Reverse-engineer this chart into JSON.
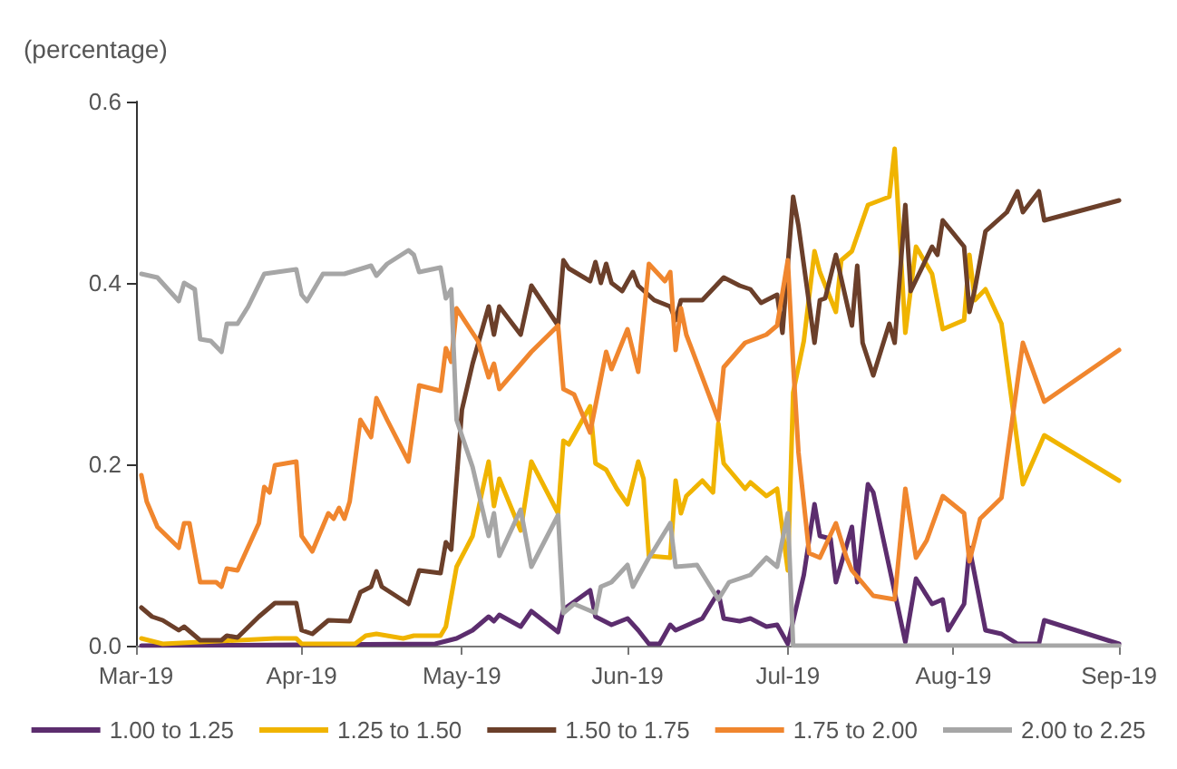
{
  "chart_data": {
    "type": "line",
    "ylabel": "(percentage)",
    "xlim": [
      "2019-03-01",
      "2019-09-01"
    ],
    "xticks": [
      {
        "value": "2019-03-01",
        "label": "Mar-19"
      },
      {
        "value": "2019-04-01",
        "label": "Apr-19"
      },
      {
        "value": "2019-05-01",
        "label": "May-19"
      },
      {
        "value": "2019-06-01",
        "label": "Jun-19"
      },
      {
        "value": "2019-07-01",
        "label": "Jul-19"
      },
      {
        "value": "2019-08-01",
        "label": "Aug-19"
      },
      {
        "value": "2019-09-01",
        "label": "Sep-19"
      }
    ],
    "ylim": [
      0,
      0.6
    ],
    "yticks": [
      {
        "value": 0,
        "label": "0.0"
      },
      {
        "value": 0.2,
        "label": "0.2"
      },
      {
        "value": 0.4,
        "label": "0.4"
      },
      {
        "value": 0.6,
        "label": "0.6"
      }
    ],
    "grid": false,
    "legend": "bottom",
    "marker": "none",
    "line_style": "solid",
    "series": [
      {
        "name": "1.00 to 1.25",
        "color": "#5c2d6e",
        "x": [
          "2019-03-02",
          "2019-04-26",
          "2019-04-30",
          "2019-05-03",
          "2019-05-06",
          "2019-05-07",
          "2019-05-08",
          "2019-05-12",
          "2019-05-14",
          "2019-05-19",
          "2019-05-20",
          "2019-05-25",
          "2019-05-26",
          "2019-05-29",
          "2019-06-01",
          "2019-06-03",
          "2019-06-05",
          "2019-06-07",
          "2019-06-09",
          "2019-06-10",
          "2019-06-15",
          "2019-06-18",
          "2019-06-19",
          "2019-06-22",
          "2019-06-24",
          "2019-06-27",
          "2019-06-29",
          "2019-07-01",
          "2019-07-04",
          "2019-07-06",
          "2019-07-07",
          "2019-07-09",
          "2019-07-10",
          "2019-07-13",
          "2019-07-14",
          "2019-07-16",
          "2019-07-17",
          "2019-07-23",
          "2019-07-25",
          "2019-07-28",
          "2019-07-30",
          "2019-07-31",
          "2019-08-03",
          "2019-08-04",
          "2019-08-07",
          "2019-08-10",
          "2019-08-13",
          "2019-08-17",
          "2019-08-18",
          "2019-09-01"
        ],
        "values": [
          0,
          0.002,
          0.008,
          0.017,
          0.032,
          0.027,
          0.034,
          0.021,
          0.038,
          0.015,
          0.04,
          0.061,
          0.032,
          0.023,
          0.03,
          0.017,
          0.002,
          0.002,
          0.023,
          0.017,
          0.03,
          0.059,
          0.03,
          0.027,
          0.03,
          0.021,
          0.023,
          0.002,
          0.078,
          0.156,
          0.121,
          0.118,
          0.07,
          0.131,
          0.07,
          0.178,
          0.169,
          0.004,
          0.074,
          0.046,
          0.051,
          0.017,
          0.046,
          0.108,
          0.017,
          0.013,
          0.002,
          0.002,
          0.028,
          0.002
        ]
      },
      {
        "name": "1.25 to 1.50",
        "color": "#f0b400",
        "x": [
          "2019-03-02",
          "2019-03-06",
          "2019-03-27",
          "2019-03-31",
          "2019-04-01",
          "2019-04-11",
          "2019-04-13",
          "2019-04-15",
          "2019-04-20",
          "2019-04-22",
          "2019-04-27",
          "2019-04-28",
          "2019-04-30",
          "2019-05-03",
          "2019-05-06",
          "2019-05-07",
          "2019-05-08",
          "2019-05-12",
          "2019-05-14",
          "2019-05-19",
          "2019-05-20",
          "2019-05-21",
          "2019-05-25",
          "2019-05-26",
          "2019-05-28",
          "2019-05-30",
          "2019-06-01",
          "2019-06-03",
          "2019-06-04",
          "2019-06-05",
          "2019-06-09",
          "2019-06-10",
          "2019-06-11",
          "2019-06-12",
          "2019-06-15",
          "2019-06-17",
          "2019-06-18",
          "2019-06-19",
          "2019-06-23",
          "2019-06-24",
          "2019-06-27",
          "2019-06-29",
          "2019-07-01",
          "2019-07-02",
          "2019-07-04",
          "2019-07-06",
          "2019-07-07",
          "2019-07-10",
          "2019-07-11",
          "2019-07-13",
          "2019-07-16",
          "2019-07-20",
          "2019-07-21",
          "2019-07-23",
          "2019-07-25",
          "2019-07-28",
          "2019-07-30",
          "2019-08-03",
          "2019-08-04",
          "2019-08-05",
          "2019-08-07",
          "2019-08-10",
          "2019-08-14",
          "2019-08-18",
          "2019-09-01"
        ],
        "values": [
          0.008,
          0.002,
          0.008,
          0.008,
          0.002,
          0.002,
          0.011,
          0.013,
          0.008,
          0.011,
          0.011,
          0.021,
          0.087,
          0.121,
          0.203,
          0.154,
          0.184,
          0.127,
          0.203,
          0.146,
          0.226,
          0.222,
          0.264,
          0.201,
          0.194,
          0.173,
          0.156,
          0.203,
          0.184,
          0.099,
          0.097,
          0.182,
          0.146,
          0.165,
          0.182,
          0.169,
          0.245,
          0.201,
          0.173,
          0.18,
          0.165,
          0.173,
          0.083,
          0.279,
          0.336,
          0.435,
          0.412,
          0.368,
          0.425,
          0.435,
          0.486,
          0.495,
          0.548,
          0.345,
          0.44,
          0.41,
          0.349,
          0.359,
          0.431,
          0.381,
          0.393,
          0.355,
          0.178,
          0.232,
          0.182
        ]
      },
      {
        "name": "1.50 to 1.75",
        "color": "#6b3f2a",
        "x": [
          "2019-03-02",
          "2019-03-04",
          "2019-03-06",
          "2019-03-09",
          "2019-03-10",
          "2019-03-13",
          "2019-03-17",
          "2019-03-18",
          "2019-03-20",
          "2019-03-24",
          "2019-03-27",
          "2019-03-31",
          "2019-04-01",
          "2019-04-03",
          "2019-04-06",
          "2019-04-10",
          "2019-04-12",
          "2019-04-14",
          "2019-04-15",
          "2019-04-16",
          "2019-04-21",
          "2019-04-23",
          "2019-04-27",
          "2019-04-28",
          "2019-04-29",
          "2019-05-01",
          "2019-05-03",
          "2019-05-06",
          "2019-05-07",
          "2019-05-08",
          "2019-05-12",
          "2019-05-14",
          "2019-05-19",
          "2019-05-20",
          "2019-05-21",
          "2019-05-25",
          "2019-05-26",
          "2019-05-27",
          "2019-05-28",
          "2019-05-29",
          "2019-05-31",
          "2019-06-02",
          "2019-06-03",
          "2019-06-06",
          "2019-06-09",
          "2019-06-10",
          "2019-06-11",
          "2019-06-15",
          "2019-06-19",
          "2019-06-22",
          "2019-06-24",
          "2019-06-26",
          "2019-06-29",
          "2019-06-30",
          "2019-07-02",
          "2019-07-03",
          "2019-07-06",
          "2019-07-07",
          "2019-07-08",
          "2019-07-10",
          "2019-07-13",
          "2019-07-14",
          "2019-07-15",
          "2019-07-17",
          "2019-07-20",
          "2019-07-21",
          "2019-07-23",
          "2019-07-24",
          "2019-07-28",
          "2019-07-29",
          "2019-07-30",
          "2019-08-03",
          "2019-08-04",
          "2019-08-05",
          "2019-08-07",
          "2019-08-11",
          "2019-08-13",
          "2019-08-14",
          "2019-08-17",
          "2019-08-18",
          "2019-09-01"
        ],
        "values": [
          0.042,
          0.032,
          0.028,
          0.017,
          0.021,
          0.006,
          0.006,
          0.011,
          0.009,
          0.032,
          0.047,
          0.047,
          0.017,
          0.013,
          0.028,
          0.027,
          0.059,
          0.065,
          0.082,
          0.065,
          0.046,
          0.083,
          0.08,
          0.114,
          0.106,
          0.26,
          0.311,
          0.374,
          0.343,
          0.374,
          0.343,
          0.397,
          0.353,
          0.425,
          0.416,
          0.402,
          0.423,
          0.4,
          0.421,
          0.4,
          0.391,
          0.412,
          0.397,
          0.381,
          0.374,
          0.359,
          0.381,
          0.381,
          0.406,
          0.397,
          0.393,
          0.378,
          0.387,
          0.345,
          0.495,
          0.463,
          0.334,
          0.381,
          0.383,
          0.431,
          0.353,
          0.419,
          0.334,
          0.298,
          0.355,
          0.334,
          0.486,
          0.391,
          0.44,
          0.431,
          0.469,
          0.44,
          0.368,
          0.393,
          0.457,
          0.478,
          0.501,
          0.478,
          0.501,
          0.469,
          0.491
        ]
      },
      {
        "name": "1.75 to 2.00",
        "color": "#f0862e",
        "x": [
          "2019-03-02",
          "2019-03-03",
          "2019-03-05",
          "2019-03-09",
          "2019-03-10",
          "2019-03-11",
          "2019-03-13",
          "2019-03-16",
          "2019-03-17",
          "2019-03-18",
          "2019-03-20",
          "2019-03-24",
          "2019-03-25",
          "2019-03-26",
          "2019-03-27",
          "2019-03-31",
          "2019-04-01",
          "2019-04-03",
          "2019-04-06",
          "2019-04-07",
          "2019-04-08",
          "2019-04-09",
          "2019-04-10",
          "2019-04-12",
          "2019-04-14",
          "2019-04-15",
          "2019-04-17",
          "2019-04-21",
          "2019-04-23",
          "2019-04-27",
          "2019-04-28",
          "2019-04-29",
          "2019-04-30",
          "2019-05-04",
          "2019-05-06",
          "2019-05-07",
          "2019-05-08",
          "2019-05-14",
          "2019-05-19",
          "2019-05-20",
          "2019-05-22",
          "2019-05-25",
          "2019-05-28",
          "2019-05-29",
          "2019-06-01",
          "2019-06-03",
          "2019-06-05",
          "2019-06-08",
          "2019-06-09",
          "2019-06-10",
          "2019-06-11",
          "2019-06-12",
          "2019-06-18",
          "2019-06-19",
          "2019-06-23",
          "2019-06-27",
          "2019-06-29",
          "2019-07-01",
          "2019-07-02",
          "2019-07-03",
          "2019-07-05",
          "2019-07-07",
          "2019-07-10",
          "2019-07-12",
          "2019-07-13",
          "2019-07-17",
          "2019-07-21",
          "2019-07-23",
          "2019-07-25",
          "2019-07-27",
          "2019-07-30",
          "2019-08-03",
          "2019-08-04",
          "2019-08-06",
          "2019-08-10",
          "2019-08-14",
          "2019-08-18",
          "2019-09-01"
        ],
        "values": [
          0.188,
          0.159,
          0.131,
          0.108,
          0.135,
          0.135,
          0.07,
          0.07,
          0.065,
          0.085,
          0.083,
          0.135,
          0.175,
          0.169,
          0.199,
          0.203,
          0.121,
          0.104,
          0.146,
          0.14,
          0.152,
          0.14,
          0.159,
          0.249,
          0.23,
          0.273,
          0.249,
          0.203,
          0.287,
          0.281,
          0.328,
          0.313,
          0.372,
          0.336,
          0.296,
          0.311,
          0.283,
          0.324,
          0.353,
          0.283,
          0.277,
          0.235,
          0.324,
          0.305,
          0.349,
          0.302,
          0.421,
          0.402,
          0.412,
          0.326,
          0.372,
          0.343,
          0.249,
          0.307,
          0.334,
          0.343,
          0.353,
          0.425,
          0.311,
          0.213,
          0.102,
          0.097,
          0.135,
          0.097,
          0.083,
          0.055,
          0.051,
          0.173,
          0.097,
          0.116,
          0.165,
          0.146,
          0.093,
          0.14,
          0.163,
          0.334,
          0.269,
          0.326
        ]
      },
      {
        "name": "2.00 to 2.25",
        "color": "#a6a6a6",
        "x": [
          "2019-03-02",
          "2019-03-05",
          "2019-03-09",
          "2019-03-10",
          "2019-03-12",
          "2019-03-13",
          "2019-03-15",
          "2019-03-17",
          "2019-03-18",
          "2019-03-20",
          "2019-03-22",
          "2019-03-25",
          "2019-03-31",
          "2019-04-01",
          "2019-04-02",
          "2019-04-05",
          "2019-04-09",
          "2019-04-14",
          "2019-04-15",
          "2019-04-17",
          "2019-04-21",
          "2019-04-22",
          "2019-04-23",
          "2019-04-27",
          "2019-04-28",
          "2019-04-29",
          "2019-04-30",
          "2019-05-03",
          "2019-05-06",
          "2019-05-07",
          "2019-05-08",
          "2019-05-12",
          "2019-05-14",
          "2019-05-19",
          "2019-05-20",
          "2019-05-22",
          "2019-05-26",
          "2019-05-27",
          "2019-05-29",
          "2019-06-01",
          "2019-06-02",
          "2019-06-05",
          "2019-06-06",
          "2019-06-09",
          "2019-06-10",
          "2019-06-14",
          "2019-06-18",
          "2019-06-20",
          "2019-06-24",
          "2019-06-27",
          "2019-06-29",
          "2019-07-01",
          "2019-07-02",
          "2019-09-01"
        ],
        "values": [
          0.41,
          0.406,
          0.38,
          0.4,
          0.393,
          0.338,
          0.336,
          0.324,
          0.355,
          0.355,
          0.374,
          0.41,
          0.415,
          0.387,
          0.38,
          0.41,
          0.41,
          0.419,
          0.408,
          0.421,
          0.436,
          0.431,
          0.412,
          0.417,
          0.383,
          0.393,
          0.249,
          0.197,
          0.121,
          0.146,
          0.099,
          0.15,
          0.087,
          0.144,
          0.036,
          0.046,
          0.036,
          0.065,
          0.07,
          0.089,
          0.065,
          0.097,
          0.106,
          0.135,
          0.087,
          0.089,
          0.051,
          0.07,
          0.078,
          0.097,
          0.087,
          0.146,
          0,
          0
        ]
      }
    ]
  }
}
